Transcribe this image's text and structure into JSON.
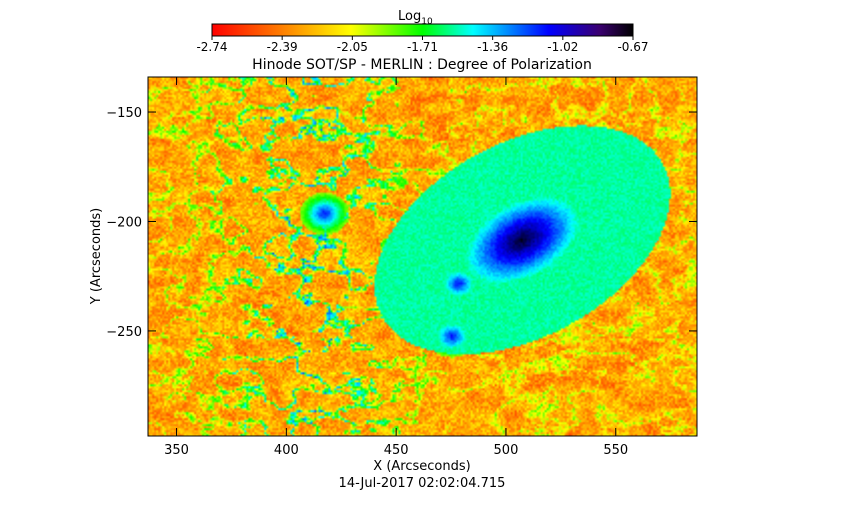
{
  "chart_data": {
    "type": "heatmap",
    "title": "Hinode SOT/SP - MERLIN : Degree of Polarization",
    "xlabel": "X (Arcseconds)",
    "ylabel": "Y (Arcseconds)",
    "timestamp": "14-Jul-2017 02:02:04.715",
    "xlim": [
      337,
      587
    ],
    "ylim": [
      -298,
      -134
    ],
    "x_ticks": [
      350,
      400,
      450,
      500,
      550
    ],
    "y_ticks": [
      -150,
      -200,
      -250
    ],
    "colorbar": {
      "label_base": "Log",
      "label_sub": "10",
      "min": -2.74,
      "max": -0.67,
      "ticks": [
        "-2.74",
        "-2.39",
        "-2.05",
        "-1.71",
        "-1.36",
        "-1.02",
        "-0.67"
      ],
      "colors": [
        "#ff0000",
        "#ff7a00",
        "#ffff00",
        "#00ff00",
        "#00ffff",
        "#0000ff",
        "#000000"
      ]
    },
    "features": [
      {
        "name": "sunspot",
        "x": 507,
        "y": -208,
        "level": -0.8
      },
      {
        "name": "pore",
        "x": 417,
        "y": -196,
        "level": -1.05
      },
      {
        "name": "pore",
        "x": 478,
        "y": -228,
        "level": -1.05
      },
      {
        "name": "pore",
        "x": 475,
        "y": -252,
        "level": -1.05
      }
    ]
  }
}
